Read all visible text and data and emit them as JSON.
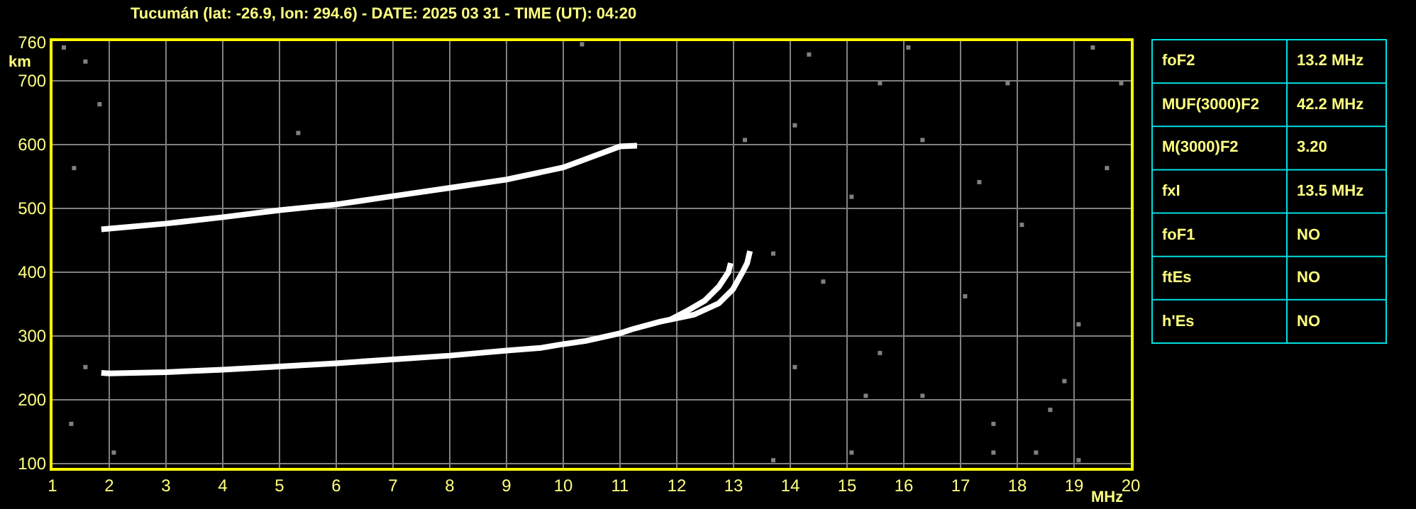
{
  "chart_data": [
    {
      "type": "scatter",
      "title": "Tucumán (lat: -26.9, lon: 294.6) - DATE: 2025 03 31 - TIME (UT): 04:20",
      "xlabel": "MHz",
      "ylabel": "km",
      "xlim": [
        1,
        20
      ],
      "xticks": [
        1,
        2,
        3,
        4,
        5,
        6,
        7,
        8,
        9,
        10,
        11,
        12,
        13,
        14,
        15,
        16,
        17,
        18,
        19,
        20
      ],
      "ylim": [
        93,
        762
      ],
      "yticks": [
        100,
        200,
        300,
        400,
        500,
        600,
        700,
        760
      ],
      "grid": true,
      "marker": "square",
      "series": [
        {
          "type": "line",
          "marker": "none",
          "color": "#ffffff",
          "x": [
            1.86,
            2,
            3,
            4,
            5,
            6,
            7,
            8,
            9,
            9.6,
            10,
            10.4,
            11,
            11.2,
            11.7,
            12.3,
            12.74,
            12.99,
            13.16,
            13.24,
            13.29
          ],
          "values": [
            242,
            241,
            243,
            247,
            252,
            257,
            263,
            269,
            277,
            281,
            287,
            292,
            304,
            310,
            322,
            333,
            351,
            373,
            400,
            414,
            433
          ]
        },
        {
          "type": "line",
          "marker": "none",
          "color": "#ffffff",
          "x": [
            11.9,
            12.2,
            12.49,
            12.74,
            12.91,
            12.95
          ],
          "values": [
            326,
            340,
            355,
            377,
            400,
            414
          ]
        },
        {
          "type": "line",
          "marker": "none",
          "color": "#ffffff",
          "x": [
            1.86,
            3,
            4,
            5,
            6,
            7,
            8,
            9,
            10,
            11,
            11.3
          ],
          "values": [
            467,
            476,
            486,
            497,
            506,
            519,
            532,
            545,
            564,
            597,
            598
          ]
        },
        {
          "type": "scatter",
          "color": "#808080",
          "x": [
            1.2,
            1.58,
            1.38,
            1.83,
            5.33,
            10.33,
            16.08,
            19.33,
            14.08,
            14.58,
            13.7,
            15.08,
            15.58,
            16.33,
            17.08,
            17.58,
            18.08,
            18.58,
            19.08,
            19.58,
            19.83,
            19.08,
            18.33,
            17.33,
            16.33,
            15.08,
            14.08,
            17.83,
            14.33,
            15.58,
            18.83,
            17.58,
            15.33,
            1.33,
            1.58,
            2.08,
            13.7,
            13.2
          ],
          "values": [
            752,
            730,
            563,
            663,
            618,
            757,
            752,
            752,
            630,
            385,
            105,
            117,
            273,
            206,
            362,
            162,
            474,
            184,
            318,
            563,
            696,
            105,
            117,
            541,
            607,
            518,
            251,
            696,
            741,
            696,
            229,
            117,
            206,
            162,
            251,
            117,
            429,
            607
          ]
        }
      ]
    },
    {
      "type": "other",
      "y_categories": [
        "foF2",
        "MUF(3000)F2",
        "M(3000)F2",
        "fxI",
        "foF1",
        "ftEs",
        "h'Es"
      ],
      "cell_labels": [
        [
          "13.2 MHz"
        ],
        [
          "42.2 MHz"
        ],
        [
          "3.20"
        ],
        [
          "13.5 MHz"
        ],
        [
          "NO"
        ],
        [
          "NO"
        ],
        [
          "NO"
        ]
      ]
    }
  ]
}
